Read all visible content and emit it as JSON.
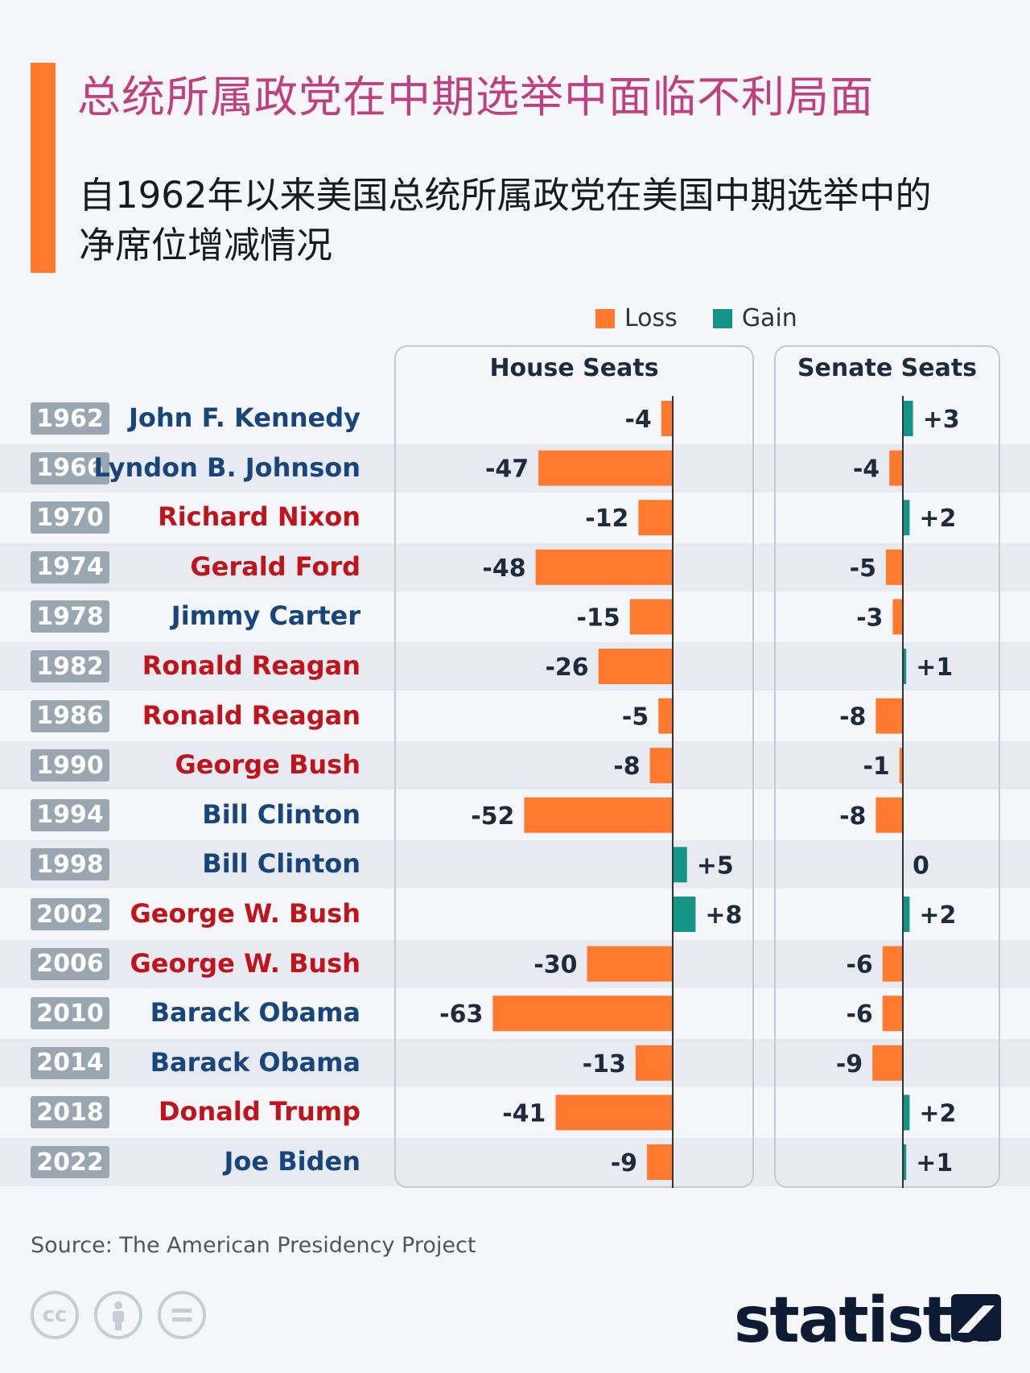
{
  "title": "总统所属政党在中期选举中面临不利局面",
  "subtitle": "自1962年以来美国总统所属政党在美国中期选举中的净席位增减情况",
  "legend": {
    "loss_label": "Loss",
    "gain_label": "Gain"
  },
  "source": "Source: The American Presidency Project",
  "logo": "statista",
  "colors": {
    "loss": "#ff7a2f",
    "gain": "#139487",
    "democrat": "#17457c",
    "republican": "#c0141d",
    "title": "#c0407f"
  },
  "chart_data": {
    "type": "bar",
    "orientation": "horizontal",
    "categories": [
      "1962",
      "1966",
      "1970",
      "1974",
      "1978",
      "1982",
      "1986",
      "1990",
      "1994",
      "1998",
      "2002",
      "2006",
      "2010",
      "2014",
      "2018",
      "2022"
    ],
    "presidents": [
      "John F. Kennedy",
      "Lyndon B. Johnson",
      "Richard Nixon",
      "Gerald Ford",
      "Jimmy Carter",
      "Ronald Reagan",
      "Ronald Reagan",
      "George Bush",
      "Bill Clinton",
      "Bill Clinton",
      "George W. Bush",
      "George W. Bush",
      "Barack Obama",
      "Barack Obama",
      "Donald Trump",
      "Joe Biden"
    ],
    "party": [
      "D",
      "D",
      "R",
      "R",
      "D",
      "R",
      "R",
      "R",
      "D",
      "D",
      "R",
      "R",
      "D",
      "D",
      "R",
      "D"
    ],
    "series": [
      {
        "name": "House Seats",
        "values": [
          -4,
          -47,
          -12,
          -48,
          -15,
          -26,
          -5,
          -8,
          -52,
          5,
          8,
          -30,
          -63,
          -13,
          -41,
          -9
        ],
        "labels": [
          "-4",
          "-47",
          "-12",
          "-48",
          "-15",
          "-26",
          "-5",
          "-8",
          "-52",
          "+5",
          "+8",
          "-30",
          "-63",
          "-13",
          "-41",
          "-9"
        ]
      },
      {
        "name": "Senate Seats",
        "values": [
          3,
          -4,
          2,
          -5,
          -3,
          1,
          -8,
          -1,
          -8,
          0,
          2,
          -6,
          -6,
          -9,
          2,
          1
        ],
        "labels": [
          "+3",
          "-4",
          "+2",
          "-5",
          "-3",
          "+1",
          "-8",
          "-1",
          "-8",
          "0",
          "+2",
          "-6",
          "-6",
          "-9",
          "+2",
          "+1"
        ]
      }
    ]
  },
  "icons": [
    "cc-icon",
    "attribution-icon",
    "no-derivatives-icon",
    "statista-mark-icon"
  ]
}
